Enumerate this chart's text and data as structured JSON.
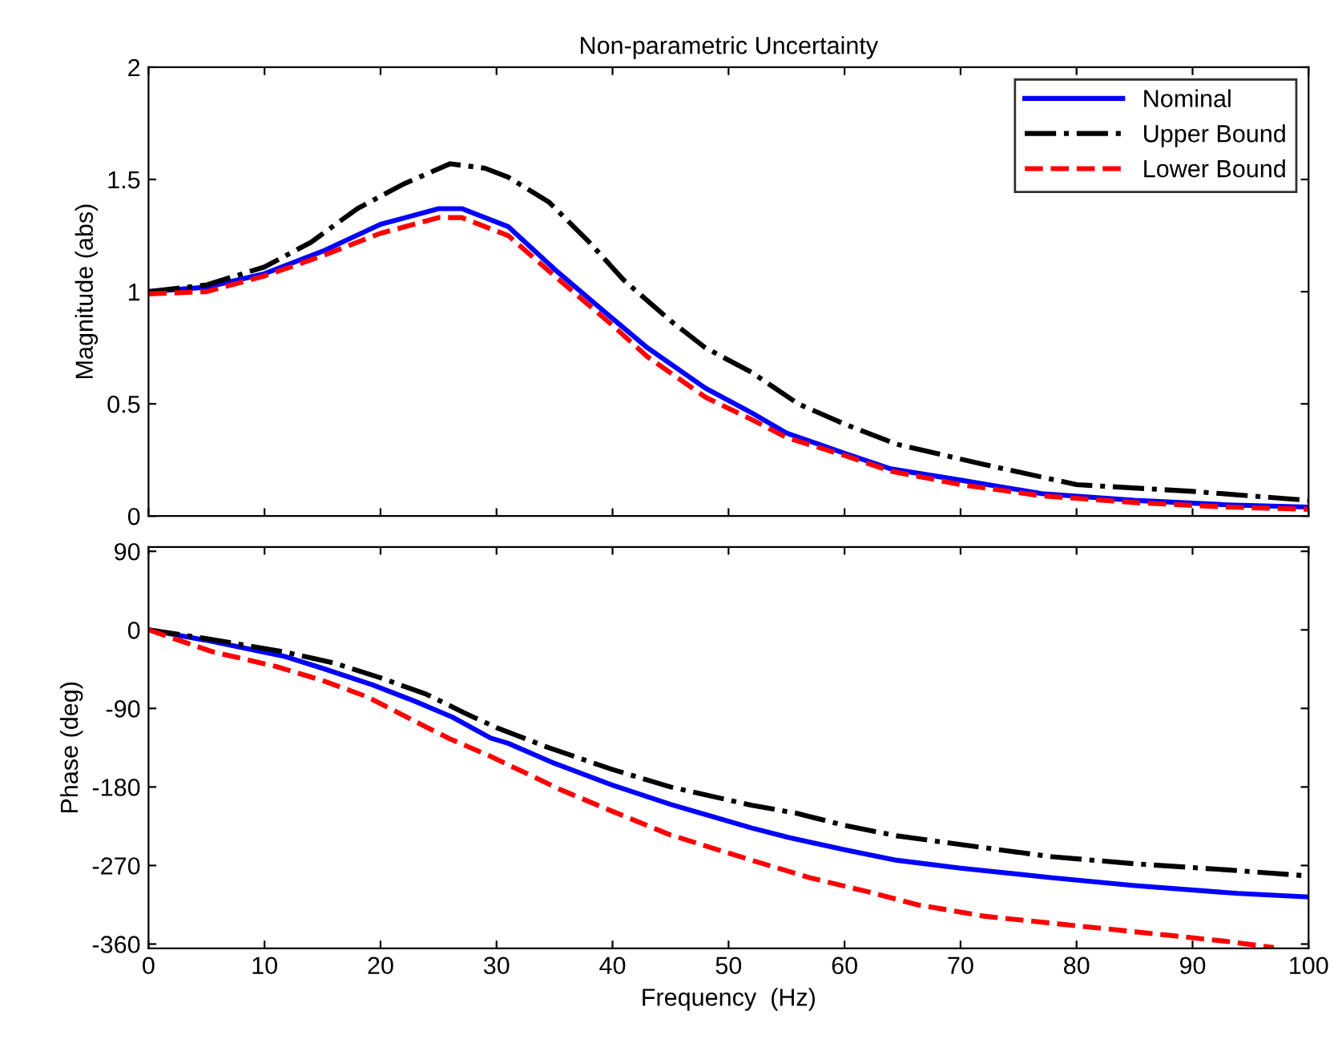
{
  "chart_data": [
    {
      "type": "line",
      "title": "Non-parametric Uncertainty",
      "ylabel": "Magnitude (abs)",
      "xlim": [
        0,
        100
      ],
      "xticks": [
        0,
        10,
        20,
        30,
        40,
        50,
        60,
        70,
        80,
        90,
        100
      ],
      "ylim": [
        0,
        2
      ],
      "yticks": [
        0,
        0.5,
        1,
        1.5,
        2
      ],
      "tick_labels": "y",
      "legend": "top right",
      "grid": false,
      "marker": "none",
      "series": [
        {
          "name": "Nominal",
          "color": "#0000ff",
          "line_style": "solid",
          "x": [
            0,
            5,
            10,
            15,
            20,
            25,
            27,
            31,
            35,
            40,
            43,
            48,
            52,
            55,
            60,
            64,
            70,
            77,
            85,
            93,
            100
          ],
          "values": [
            1.0,
            1.02,
            1.08,
            1.18,
            1.3,
            1.37,
            1.37,
            1.29,
            1.1,
            0.88,
            0.75,
            0.57,
            0.46,
            0.37,
            0.28,
            0.21,
            0.16,
            0.1,
            0.07,
            0.05,
            0.04
          ]
        },
        {
          "name": "Upper Bound",
          "color": "#000000",
          "line_style": "dashdot",
          "x": [
            0,
            5,
            10,
            14,
            18,
            22,
            26,
            29,
            31,
            34.5,
            38,
            41,
            45,
            48,
            52,
            56,
            60,
            64.5,
            72,
            80,
            90,
            100
          ],
          "values": [
            1.0,
            1.03,
            1.11,
            1.22,
            1.37,
            1.48,
            1.57,
            1.55,
            1.51,
            1.4,
            1.22,
            1.05,
            0.87,
            0.75,
            0.64,
            0.5,
            0.41,
            0.32,
            0.23,
            0.14,
            0.11,
            0.07
          ]
        },
        {
          "name": "Lower Bound",
          "color": "#ff0000",
          "line_style": "dashed",
          "x": [
            0,
            5,
            10,
            15,
            20,
            25,
            27,
            31,
            35,
            40,
            43,
            48,
            52,
            55,
            60,
            64,
            70,
            77,
            85,
            93,
            100
          ],
          "values": [
            0.99,
            1.0,
            1.07,
            1.16,
            1.26,
            1.33,
            1.33,
            1.25,
            1.07,
            0.85,
            0.71,
            0.53,
            0.43,
            0.35,
            0.27,
            0.2,
            0.14,
            0.09,
            0.06,
            0.04,
            0.03
          ]
        }
      ]
    },
    {
      "type": "line",
      "xlabel": "Frequency  (Hz)",
      "ylabel": "Phase (deg)",
      "xlim": [
        0,
        100
      ],
      "xticks": [
        0,
        10,
        20,
        30,
        40,
        50,
        60,
        70,
        80,
        90,
        100
      ],
      "ylim": [
        -365,
        95
      ],
      "yticks": [
        -360,
        -270,
        -180,
        -90,
        0,
        90
      ],
      "legend": false,
      "grid": false,
      "marker": "none",
      "series": [
        {
          "color": "#0000ff",
          "line_style": "solid",
          "x": [
            0,
            5,
            11.6,
            15,
            19.3,
            23,
            26.2,
            29.5,
            31,
            35,
            40,
            45,
            52,
            55.2,
            60,
            64.5,
            70,
            77.9,
            85,
            93.9,
            100
          ],
          "values": [
            0,
            -12,
            -30,
            -44,
            -63,
            -82,
            -100,
            -124,
            -130,
            -153,
            -178,
            -200,
            -227,
            -238,
            -252,
            -264,
            -273,
            -284,
            -293,
            -302,
            -306
          ]
        },
        {
          "color": "#000000",
          "line_style": "dashdot",
          "x": [
            0,
            5,
            11.6,
            16,
            20,
            24,
            27.2,
            30,
            34.5,
            40,
            45,
            52,
            55.8,
            60,
            64.5,
            70,
            77.9,
            85,
            93,
            100
          ],
          "values": [
            0,
            -10,
            -25,
            -38,
            -55,
            -74,
            -95,
            -112,
            -135,
            -160,
            -180,
            -201,
            -210,
            -224,
            -236,
            -246,
            -260,
            -268,
            -275,
            -282
          ]
        },
        {
          "color": "#ff0000",
          "line_style": "dashed",
          "x": [
            0,
            5.5,
            11,
            15,
            18.9,
            23,
            26,
            29.5,
            35.5,
            40,
            45,
            52,
            57,
            62,
            66.3,
            72,
            80,
            88,
            93,
            97
          ],
          "values": [
            0,
            -25,
            -42,
            -58,
            -77,
            -105,
            -125,
            -145,
            -183,
            -208,
            -235,
            -264,
            -284,
            -300,
            -315,
            -328,
            -339,
            -350,
            -357,
            -364
          ]
        }
      ]
    }
  ]
}
